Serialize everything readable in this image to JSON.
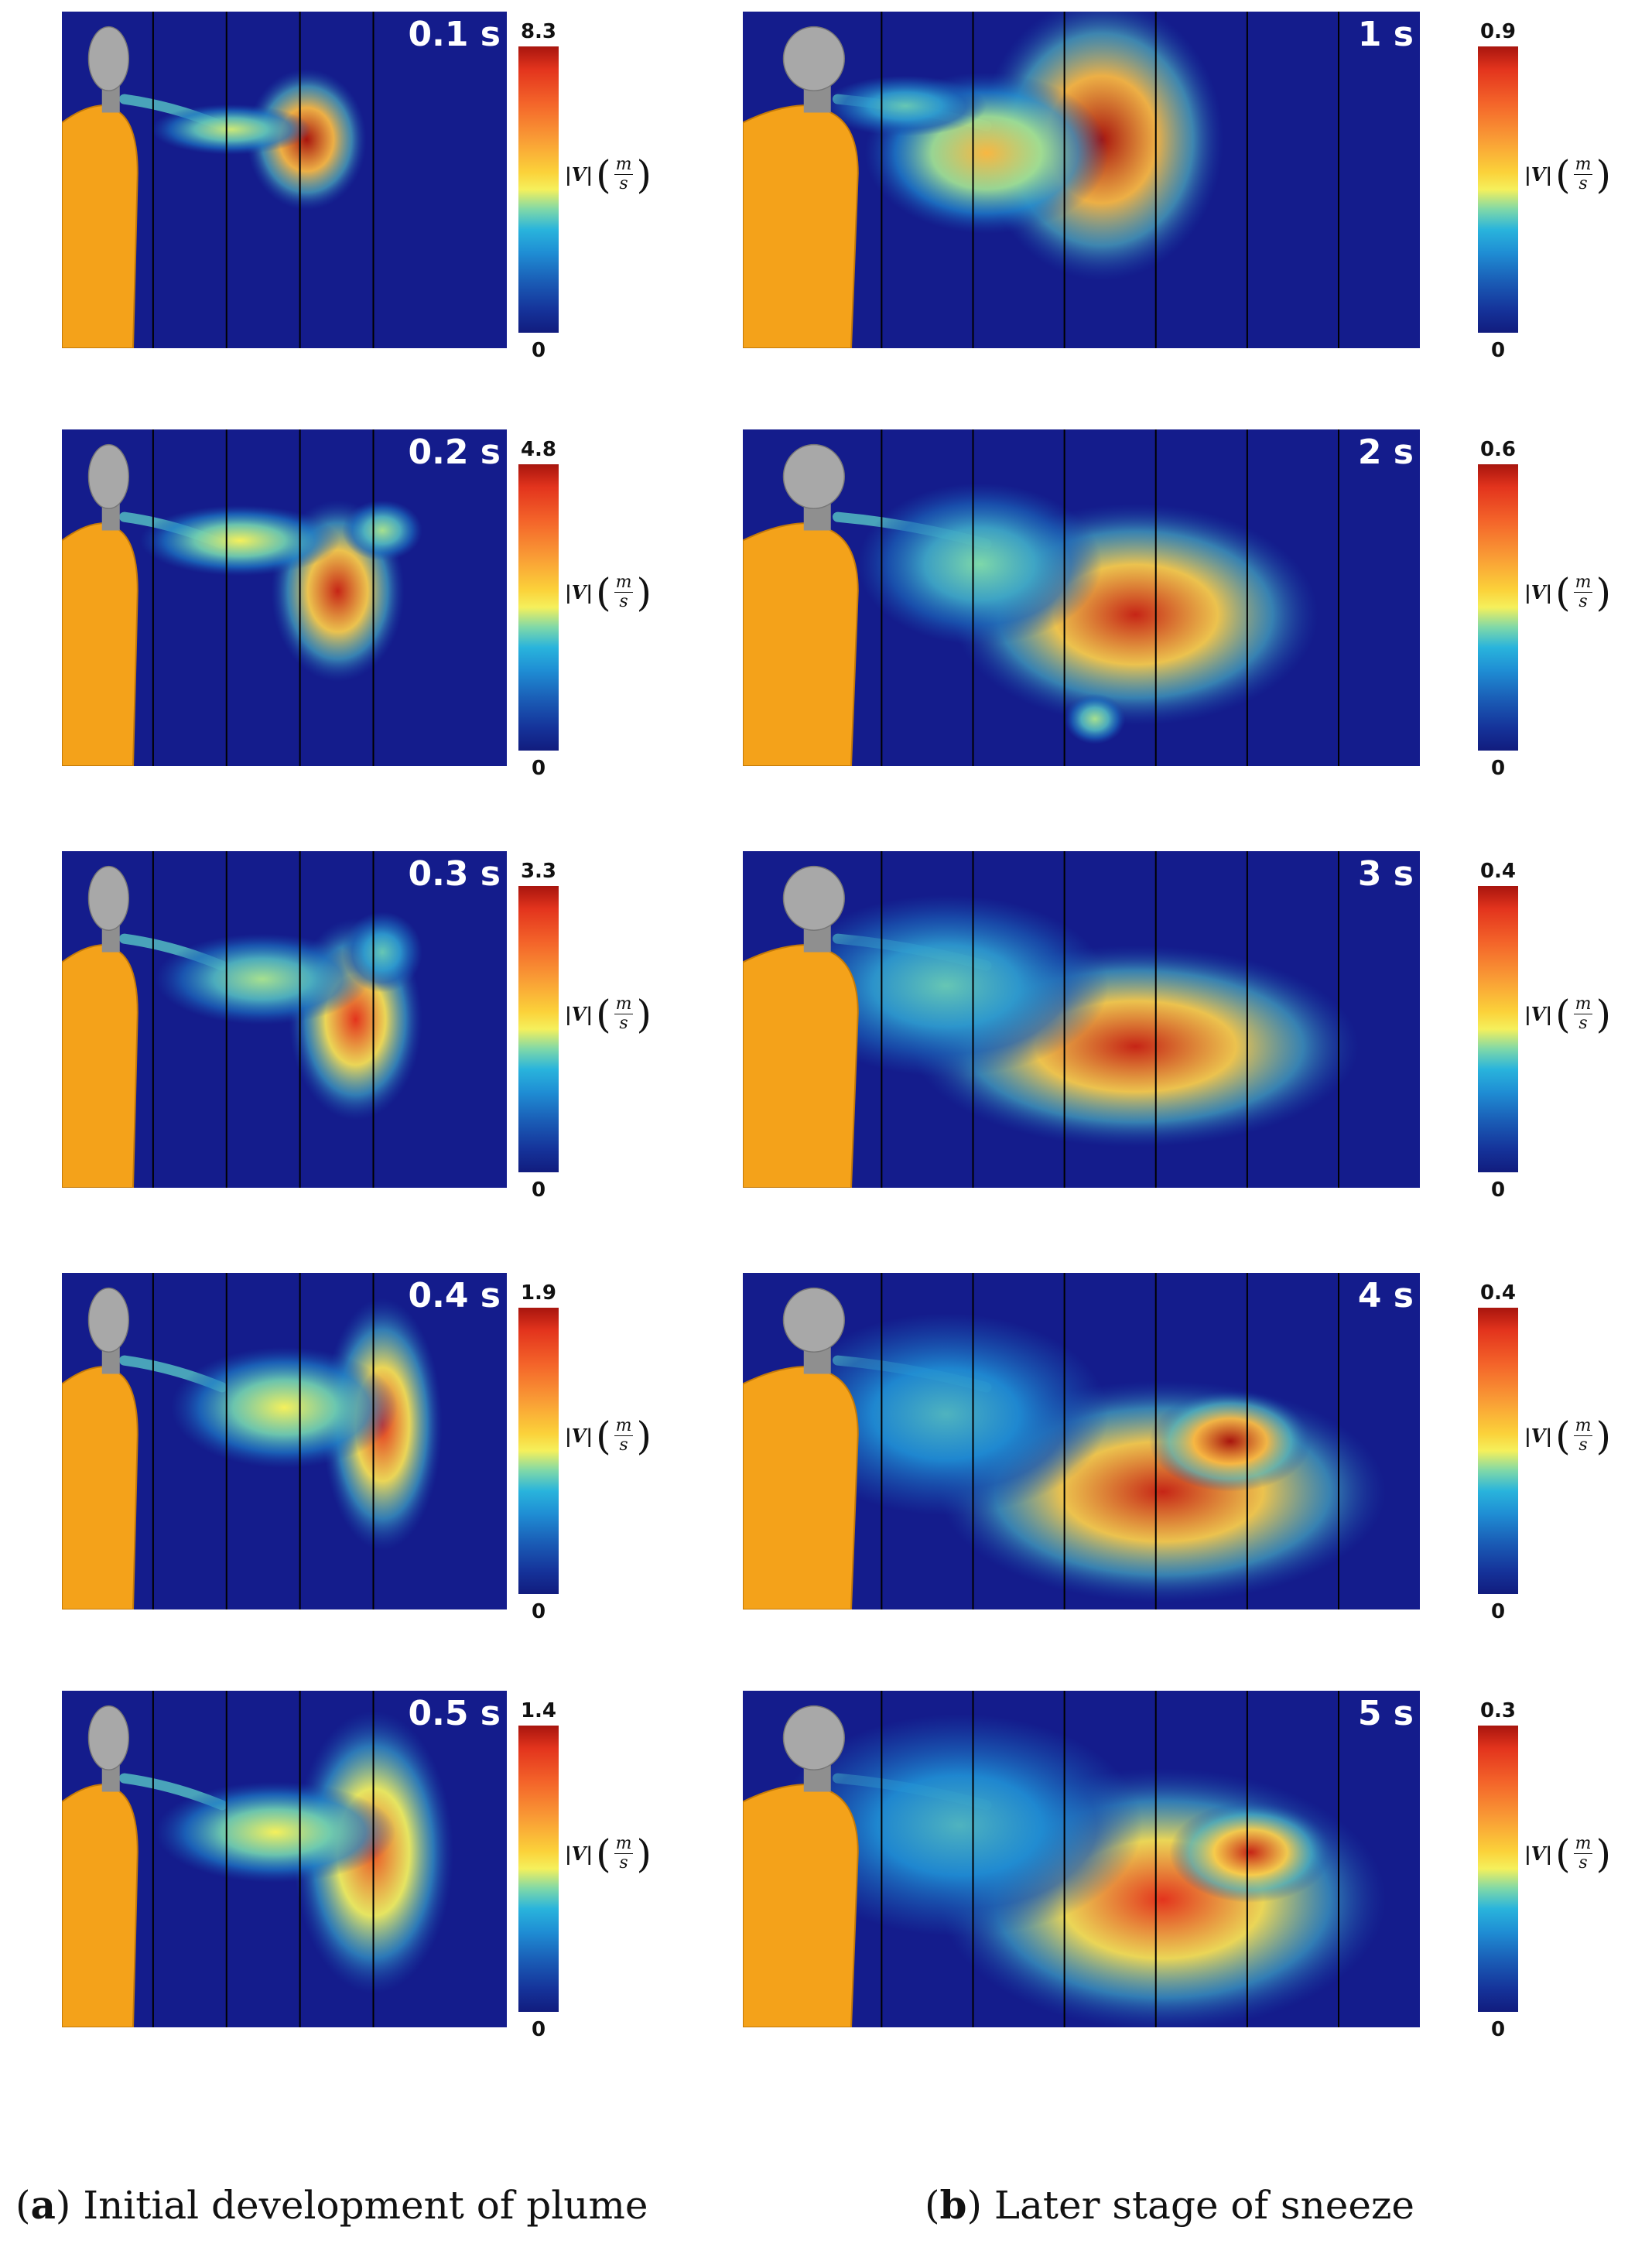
{
  "colorbar_label": "|V|",
  "colorbar_unit_numerator": "m",
  "colorbar_unit_denominator": "s",
  "colorbar_min": "0",
  "captions": [
    {
      "letter": "a",
      "text": "Initial development of plume"
    },
    {
      "letter": "b",
      "text": "Later stage of sneeze"
    }
  ],
  "columns": [
    {
      "id": "a",
      "frames": [
        {
          "time": "0.1 s",
          "vmax": "8.3"
        },
        {
          "time": "0.2 s",
          "vmax": "4.8"
        },
        {
          "time": "0.3 s",
          "vmax": "3.3"
        },
        {
          "time": "0.4 s",
          "vmax": "1.9"
        },
        {
          "time": "0.5 s",
          "vmax": "1.4"
        }
      ]
    },
    {
      "id": "b",
      "frames": [
        {
          "time": "1 s",
          "vmax": "0.9"
        },
        {
          "time": "2 s",
          "vmax": "0.6"
        },
        {
          "time": "3 s",
          "vmax": "0.4"
        },
        {
          "time": "4 s",
          "vmax": "0.4"
        },
        {
          "time": "5 s",
          "vmax": "0.3"
        }
      ]
    }
  ],
  "colors": {
    "background_field": "#141c8c",
    "body": "#f4a21a",
    "head": "#a8a8a8"
  }
}
